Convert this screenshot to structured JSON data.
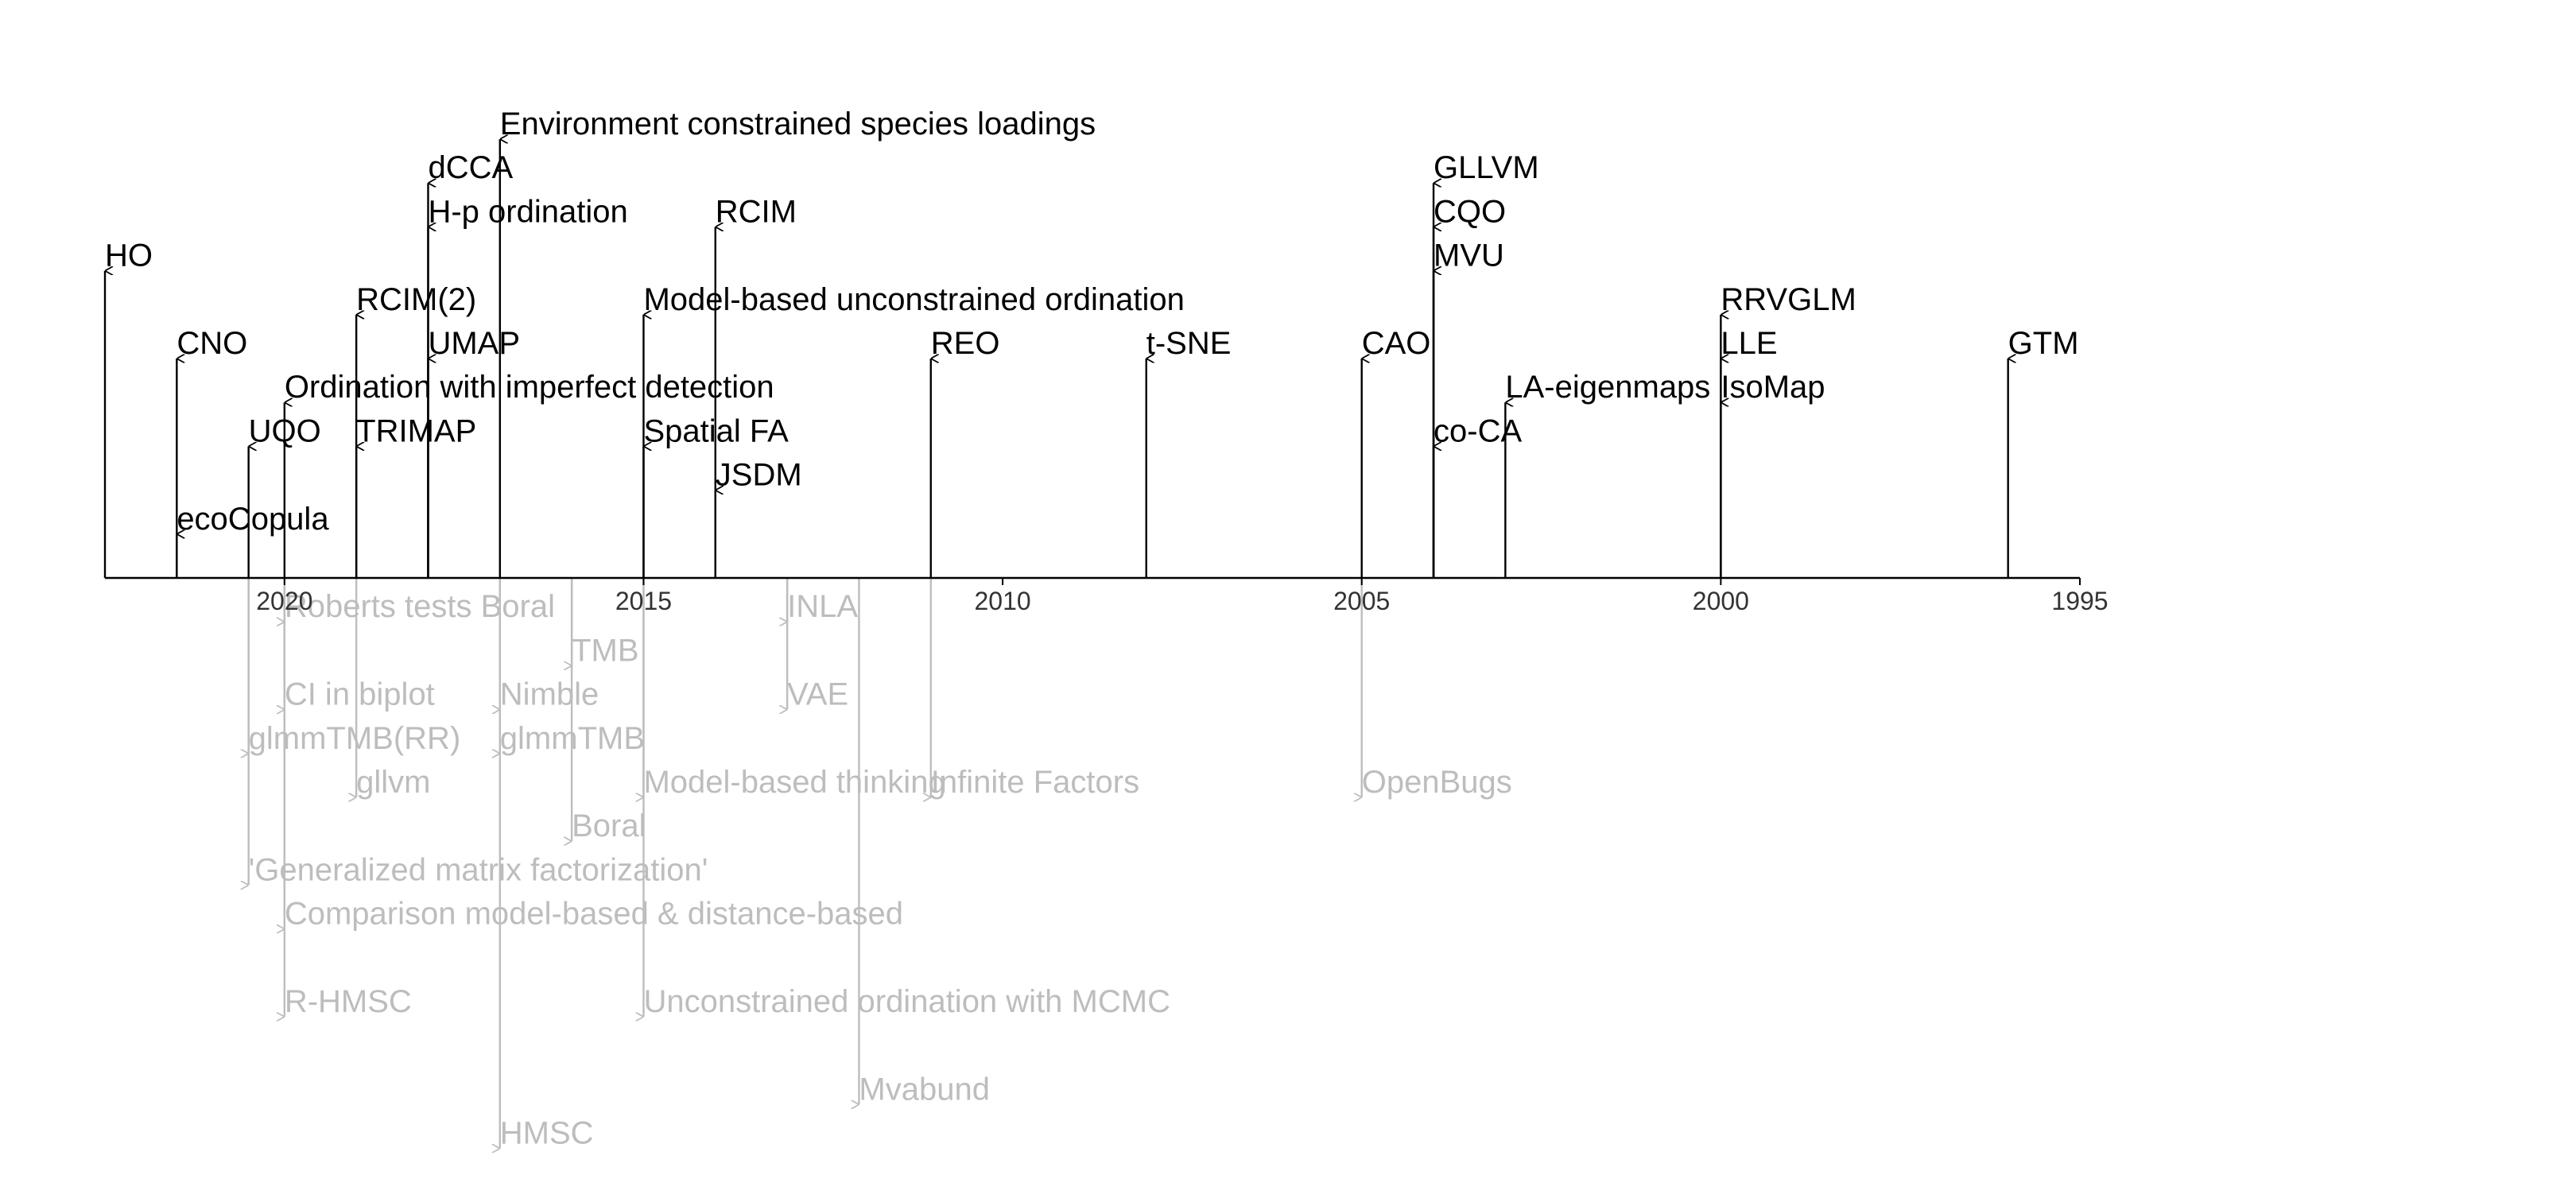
{
  "chart_data": {
    "type": "timeline",
    "title": "",
    "xlabel": "",
    "ylabel": "",
    "x_reversed": true,
    "xlim": [
      2022.5,
      1995
    ],
    "x_ticks": [
      "2020",
      "2015",
      "2010",
      "2005",
      "2000",
      "1995"
    ],
    "x_tick_values": [
      2020,
      2015,
      2010,
      2005,
      2000,
      1995
    ],
    "grid": false,
    "colors": {
      "upper": "#000000",
      "lower": "#bdbdbd",
      "axis": "#000000"
    },
    "upper_series": [
      {
        "label": "HO",
        "year": 2022.5,
        "level": 7
      },
      {
        "label": "CNO",
        "year": 2021.5,
        "level": 5
      },
      {
        "label": "UQO",
        "year": 2020.5,
        "level": 3
      },
      {
        "label": "ecoCopula",
        "year": 2021.5,
        "level": 1
      },
      {
        "label": "Ordination with imperfect detection",
        "year": 2020,
        "level": 4
      },
      {
        "label": "RCIM(2)",
        "year": 2019,
        "level": 6
      },
      {
        "label": "TRIMAP",
        "year": 2019,
        "level": 3
      },
      {
        "label": "dCCA",
        "year": 2018,
        "level": 9
      },
      {
        "label": "H-p ordination",
        "year": 2018,
        "level": 8
      },
      {
        "label": "UMAP",
        "year": 2018,
        "level": 5
      },
      {
        "label": "Environment constrained species loadings",
        "year": 2017,
        "level": 10
      },
      {
        "label": "Model-based unconstrained ordination",
        "year": 2015,
        "level": 6
      },
      {
        "label": "Spatial FA",
        "year": 2015,
        "level": 3
      },
      {
        "label": "RCIM",
        "year": 2014,
        "level": 8
      },
      {
        "label": "JSDM",
        "year": 2014,
        "level": 2
      },
      {
        "label": "REO",
        "year": 2011,
        "level": 5
      },
      {
        "label": "t-SNE",
        "year": 2008,
        "level": 5
      },
      {
        "label": "CAO",
        "year": 2005,
        "level": 5
      },
      {
        "label": "GLLVM",
        "year": 2004,
        "level": 9
      },
      {
        "label": "CQO",
        "year": 2004,
        "level": 8
      },
      {
        "label": "MVU",
        "year": 2004,
        "level": 7
      },
      {
        "label": "co-CA",
        "year": 2004,
        "level": 3
      },
      {
        "label": "LA-eigenmaps",
        "year": 2003,
        "level": 4
      },
      {
        "label": "RRVGLM",
        "year": 2000,
        "level": 6
      },
      {
        "label": "LLE",
        "year": 2000,
        "level": 5
      },
      {
        "label": "IsoMap",
        "year": 2000,
        "level": 4
      },
      {
        "label": "GTM",
        "year": 1996,
        "level": 5
      }
    ],
    "lower_series": [
      {
        "label": "Roberts tests Boral",
        "year": 2020,
        "level": 1
      },
      {
        "label": "CI in biplot",
        "year": 2020,
        "level": 3
      },
      {
        "label": "Comparison model-based & distance-based",
        "year": 2020,
        "level": 8
      },
      {
        "label": "R-HMSC",
        "year": 2020,
        "level": 10
      },
      {
        "label": "glmmTMB(RR)",
        "year": 2020.5,
        "level": 4
      },
      {
        "label": "'Generalized matrix factorization'",
        "year": 2020.5,
        "level": 7
      },
      {
        "label": "gllvm",
        "year": 2019,
        "level": 5
      },
      {
        "label": "Nimble",
        "year": 2017,
        "level": 3
      },
      {
        "label": "glmmTMB",
        "year": 2017,
        "level": 4
      },
      {
        "label": "HMSC",
        "year": 2017,
        "level": 13
      },
      {
        "label": "TMB",
        "year": 2016,
        "level": 2
      },
      {
        "label": "Boral",
        "year": 2016,
        "level": 6
      },
      {
        "label": "Model-based thinking",
        "year": 2015,
        "level": 5
      },
      {
        "label": "Unconstrained ordination with MCMC",
        "year": 2015,
        "level": 10
      },
      {
        "label": "INLA",
        "year": 2013,
        "level": 1
      },
      {
        "label": "VAE",
        "year": 2013,
        "level": 3
      },
      {
        "label": "Mvabund",
        "year": 2012,
        "level": 12
      },
      {
        "label": "Infinite Factors",
        "year": 2011,
        "level": 5
      },
      {
        "label": "OpenBugs",
        "year": 2005,
        "level": 5
      }
    ]
  }
}
